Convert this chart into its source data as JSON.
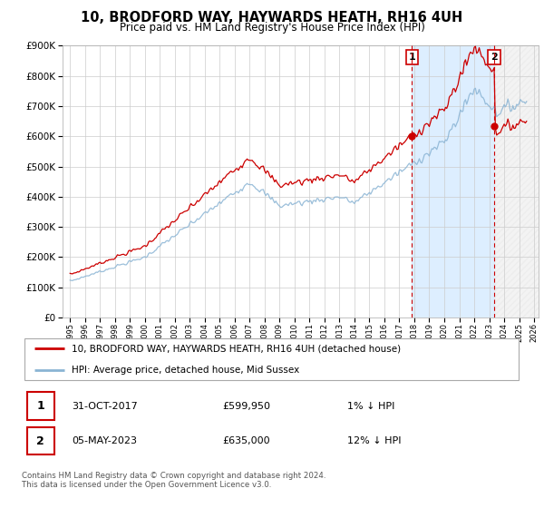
{
  "title": "10, BRODFORD WAY, HAYWARDS HEATH, RH16 4UH",
  "subtitle": "Price paid vs. HM Land Registry's House Price Index (HPI)",
  "legend_line1": "10, BRODFORD WAY, HAYWARDS HEATH, RH16 4UH (detached house)",
  "legend_line2": "HPI: Average price, detached house, Mid Sussex",
  "annotation1_label": "1",
  "annotation1_date": "31-OCT-2017",
  "annotation1_price": "£599,950",
  "annotation1_hpi": "1% ↓ HPI",
  "annotation1_year": 2017.83,
  "annotation1_value": 599950,
  "annotation2_label": "2",
  "annotation2_date": "05-MAY-2023",
  "annotation2_price": "£635,000",
  "annotation2_hpi": "12% ↓ HPI",
  "annotation2_year": 2023.34,
  "annotation2_value": 635000,
  "background_color": "#ffffff",
  "plot_bg_color": "#ffffff",
  "grid_color": "#cccccc",
  "hpi_line_color": "#8ab4d4",
  "price_line_color": "#cc0000",
  "vline_color": "#cc0000",
  "shade_color": "#ddeeff",
  "footer_text": "Contains HM Land Registry data © Crown copyright and database right 2024.\nThis data is licensed under the Open Government Licence v3.0.",
  "xmin": 1995,
  "xmax": 2026,
  "ymin": 0,
  "ymax": 900000,
  "yticks": [
    0,
    100000,
    200000,
    300000,
    400000,
    500000,
    600000,
    700000,
    800000,
    900000
  ]
}
